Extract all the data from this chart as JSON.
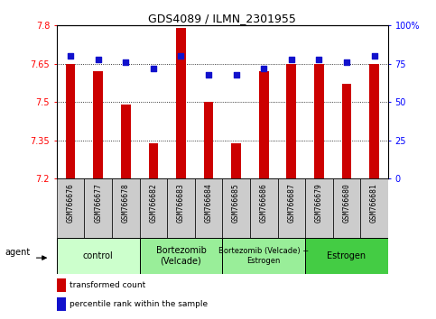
{
  "title": "GDS4089 / ILMN_2301955",
  "samples": [
    "GSM766676",
    "GSM766677",
    "GSM766678",
    "GSM766682",
    "GSM766683",
    "GSM766684",
    "GSM766685",
    "GSM766686",
    "GSM766687",
    "GSM766679",
    "GSM766680",
    "GSM766681"
  ],
  "transformed_counts": [
    7.65,
    7.62,
    7.49,
    7.34,
    7.79,
    7.5,
    7.34,
    7.62,
    7.65,
    7.65,
    7.57,
    7.65
  ],
  "percentile_ranks": [
    80,
    78,
    76,
    72,
    80,
    68,
    68,
    72,
    78,
    78,
    76,
    80
  ],
  "ymin": 7.2,
  "ymax": 7.8,
  "yright_min": 0,
  "yright_max": 100,
  "yticks_left": [
    7.2,
    7.35,
    7.5,
    7.65,
    7.8
  ],
  "ytick_labels_left": [
    "7.2",
    "7.35",
    "7.5",
    "7.65",
    "7.8"
  ],
  "yticks_right": [
    0,
    25,
    50,
    75,
    100
  ],
  "ytick_labels_right": [
    "0",
    "25",
    "50",
    "75",
    "100%"
  ],
  "bar_color": "#CC0000",
  "dot_color": "#1111CC",
  "bar_width": 0.35,
  "group_spans": [
    {
      "start": 0,
      "end": 2,
      "label": "control",
      "color": "#ccffcc"
    },
    {
      "start": 3,
      "end": 5,
      "label": "Bortezomib\n(Velcade)",
      "color": "#99ee99"
    },
    {
      "start": 6,
      "end": 8,
      "label": "Bortezomib (Velcade) +\nEstrogen",
      "color": "#99ee99"
    },
    {
      "start": 9,
      "end": 11,
      "label": "Estrogen",
      "color": "#44cc44"
    }
  ],
  "legend_red_label": "transformed count",
  "legend_blue_label": "percentile rank within the sample",
  "agent_label": "agent",
  "sample_box_color": "#cccccc",
  "grid_color": "#000000"
}
